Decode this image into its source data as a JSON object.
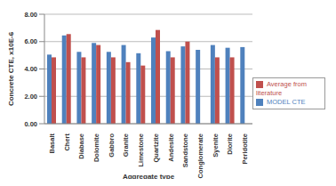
{
  "chart_data": {
    "type": "bar",
    "x_label": "Aggregate type",
    "y_label": "Concrete CTE, x10E-6",
    "categories": [
      "Basalt",
      "Chert",
      "Diabase",
      "Dolomite",
      "Gabbro",
      "Granite",
      "Limestone",
      "Quartzite",
      "Andesite",
      "Sandstone",
      "Conglomerate",
      "Syenite",
      "Diorite",
      "Peridotite"
    ],
    "series": [
      {
        "name": "MODEL CTE",
        "color": "#4f81bd",
        "values": [
          5.05,
          6.45,
          5.25,
          5.9,
          5.25,
          5.75,
          5.15,
          6.3,
          5.3,
          5.65,
          5.4,
          5.75,
          5.55,
          5.6
        ]
      },
      {
        "name": "Average from literature",
        "color": "#c0504d",
        "values": [
          4.85,
          6.55,
          4.85,
          5.75,
          4.85,
          4.5,
          4.25,
          6.85,
          4.85,
          6.0,
          null,
          4.85,
          4.85,
          null
        ]
      }
    ],
    "ylim": [
      0,
      8
    ],
    "yticks": [
      {
        "value": 0,
        "label": "0.00"
      },
      {
        "value": 2,
        "label": "2.00"
      },
      {
        "value": 4,
        "label": "4.00"
      },
      {
        "value": 6,
        "label": "6.00"
      },
      {
        "value": 8,
        "label": "8.00"
      }
    ],
    "grid": true,
    "legend": "right"
  }
}
